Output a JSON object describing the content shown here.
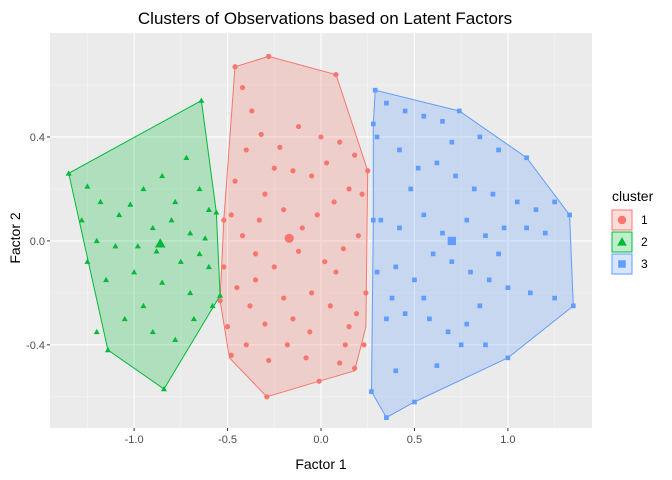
{
  "chart_data": {
    "type": "scatter",
    "title": "Clusters of Observations based on Latent Factors",
    "xlabel": "Factor 1",
    "ylabel": "Factor 2",
    "xlim": [
      -1.45,
      1.45
    ],
    "ylim": [
      -0.72,
      0.8
    ],
    "x_ticks": [
      -1.0,
      -0.5,
      0.0,
      0.5,
      1.0
    ],
    "x_tick_labels": [
      "-1.0",
      "-0.5",
      "0.0",
      "0.5",
      "1.0"
    ],
    "y_ticks": [
      -0.4,
      0.0,
      0.4
    ],
    "y_tick_labels": [
      "-0.4",
      "0.0",
      "0.4"
    ],
    "grid": true,
    "legend": {
      "title": "cluster",
      "position": "right"
    },
    "series": [
      {
        "name": "1",
        "color": "#F8766D",
        "shape": "circle",
        "centroid": [
          -0.17,
          0.01
        ],
        "hull": [
          [
            -0.28,
            0.71
          ],
          [
            -0.46,
            0.67
          ],
          [
            -0.52,
            0.08
          ],
          [
            -0.54,
            -0.23
          ],
          [
            -0.49,
            -0.45
          ],
          [
            -0.29,
            -0.6
          ],
          [
            -0.01,
            -0.54
          ],
          [
            0.18,
            -0.5
          ],
          [
            0.24,
            -0.33
          ],
          [
            0.25,
            0.27
          ],
          [
            0.08,
            0.64
          ]
        ],
        "points": [
          [
            -0.28,
            0.71
          ],
          [
            -0.46,
            0.67
          ],
          [
            -0.42,
            0.59
          ],
          [
            -0.37,
            0.5
          ],
          [
            -0.32,
            0.41
          ],
          [
            -0.25,
            0.28
          ],
          [
            -0.15,
            0.27
          ],
          [
            -0.05,
            0.25
          ],
          [
            0.03,
            0.3
          ],
          [
            0.1,
            0.38
          ],
          [
            -0.4,
            0.35
          ],
          [
            -0.3,
            0.18
          ],
          [
            -0.2,
            0.12
          ],
          [
            -0.1,
            0.05
          ],
          [
            -0.02,
            0.1
          ],
          [
            0.07,
            0.15
          ],
          [
            0.15,
            0.2
          ],
          [
            0.22,
            0.18
          ],
          [
            -0.48,
            0.1
          ],
          [
            -0.42,
            0.02
          ],
          [
            -0.35,
            -0.05
          ],
          [
            -0.25,
            -0.1
          ],
          [
            -0.12,
            -0.04
          ],
          [
            0.02,
            -0.08
          ],
          [
            0.12,
            -0.03
          ],
          [
            0.2,
            0.02
          ],
          [
            -0.52,
            -0.1
          ],
          [
            -0.45,
            -0.18
          ],
          [
            -0.38,
            -0.25
          ],
          [
            -0.3,
            -0.32
          ],
          [
            -0.15,
            -0.3
          ],
          [
            -0.05,
            -0.2
          ],
          [
            0.05,
            -0.25
          ],
          [
            0.15,
            -0.33
          ],
          [
            0.23,
            -0.4
          ],
          [
            -0.5,
            -0.33
          ],
          [
            -0.4,
            -0.4
          ],
          [
            -0.28,
            -0.46
          ],
          [
            -0.18,
            -0.4
          ],
          [
            -0.08,
            -0.45
          ],
          [
            0.1,
            -0.47
          ],
          [
            0.18,
            -0.49
          ],
          [
            -0.48,
            -0.44
          ],
          [
            -0.29,
            -0.6
          ],
          [
            -0.01,
            -0.54
          ],
          [
            -0.33,
            0.08
          ],
          [
            -0.22,
            0.36
          ],
          [
            -0.12,
            0.44
          ],
          [
            0.0,
            0.4
          ],
          [
            0.18,
            0.33
          ],
          [
            -0.46,
            0.23
          ],
          [
            0.24,
            -0.2
          ],
          [
            0.08,
            -0.12
          ],
          [
            -0.35,
            -0.15
          ],
          [
            -0.2,
            -0.22
          ],
          [
            -0.06,
            -0.35
          ],
          [
            0.13,
            -0.4
          ],
          [
            0.19,
            -0.28
          ],
          [
            -0.54,
            -0.23
          ],
          [
            -0.52,
            0.08
          ],
          [
            0.25,
            0.27
          ],
          [
            0.08,
            0.64
          ]
        ]
      },
      {
        "name": "2",
        "color": "#00BA38",
        "shape": "triangle",
        "centroid": [
          -0.86,
          -0.01
        ],
        "hull": [
          [
            -0.64,
            0.54
          ],
          [
            -1.35,
            0.26
          ],
          [
            -1.14,
            -0.42
          ],
          [
            -0.84,
            -0.57
          ],
          [
            -0.54,
            -0.21
          ],
          [
            -0.56,
            0.11
          ]
        ],
        "points": [
          [
            -0.64,
            0.54
          ],
          [
            -1.35,
            0.26
          ],
          [
            -1.25,
            0.21
          ],
          [
            -1.18,
            0.15
          ],
          [
            -1.08,
            0.1
          ],
          [
            -0.95,
            0.2
          ],
          [
            -0.85,
            0.25
          ],
          [
            -0.72,
            0.32
          ],
          [
            -0.65,
            0.2
          ],
          [
            -0.6,
            0.12
          ],
          [
            -0.9,
            0.05
          ],
          [
            -0.8,
            0.08
          ],
          [
            -0.7,
            0.03
          ],
          [
            -0.62,
            0.01
          ],
          [
            -1.2,
            0.0
          ],
          [
            -1.1,
            -0.02
          ],
          [
            -0.98,
            -0.02
          ],
          [
            -0.88,
            -0.04
          ],
          [
            -0.75,
            -0.08
          ],
          [
            -0.6,
            -0.1
          ],
          [
            -1.25,
            -0.08
          ],
          [
            -1.15,
            -0.15
          ],
          [
            -1.0,
            -0.12
          ],
          [
            -0.85,
            -0.16
          ],
          [
            -0.7,
            -0.2
          ],
          [
            -0.58,
            -0.25
          ],
          [
            -1.14,
            -0.42
          ],
          [
            -0.84,
            -0.57
          ],
          [
            -0.54,
            -0.21
          ],
          [
            -1.2,
            -0.35
          ],
          [
            -1.05,
            -0.3
          ],
          [
            -0.9,
            -0.35
          ],
          [
            -0.78,
            -0.38
          ],
          [
            -0.68,
            -0.3
          ],
          [
            -1.28,
            0.08
          ],
          [
            -0.56,
            0.11
          ],
          [
            -0.78,
            0.15
          ],
          [
            -1.02,
            0.14
          ],
          [
            -0.95,
            -0.25
          ],
          [
            -0.65,
            -0.05
          ]
        ]
      },
      {
        "name": "3",
        "color": "#619CFF",
        "shape": "square",
        "centroid": [
          0.7,
          0.0
        ],
        "hull": [
          [
            0.29,
            0.58
          ],
          [
            0.74,
            0.5
          ],
          [
            1.1,
            0.32
          ],
          [
            1.33,
            0.1
          ],
          [
            1.35,
            -0.25
          ],
          [
            1.0,
            -0.45
          ],
          [
            0.5,
            -0.62
          ],
          [
            0.35,
            -0.68
          ],
          [
            0.27,
            -0.58
          ],
          [
            0.28,
            0.08
          ],
          [
            0.28,
            0.45
          ]
        ],
        "points": [
          [
            0.29,
            0.58
          ],
          [
            0.35,
            0.53
          ],
          [
            0.45,
            0.5
          ],
          [
            0.55,
            0.48
          ],
          [
            0.65,
            0.46
          ],
          [
            0.74,
            0.5
          ],
          [
            0.85,
            0.4
          ],
          [
            0.95,
            0.35
          ],
          [
            1.1,
            0.32
          ],
          [
            0.3,
            0.4
          ],
          [
            0.42,
            0.35
          ],
          [
            0.52,
            0.28
          ],
          [
            0.62,
            0.3
          ],
          [
            0.72,
            0.25
          ],
          [
            0.82,
            0.2
          ],
          [
            0.92,
            0.18
          ],
          [
            1.05,
            0.15
          ],
          [
            1.15,
            0.12
          ],
          [
            1.25,
            0.15
          ],
          [
            1.33,
            0.1
          ],
          [
            0.32,
            0.08
          ],
          [
            0.42,
            0.05
          ],
          [
            0.55,
            0.1
          ],
          [
            0.65,
            0.03
          ],
          [
            0.78,
            0.08
          ],
          [
            0.88,
            0.02
          ],
          [
            0.98,
            0.05
          ],
          [
            1.1,
            0.05
          ],
          [
            1.2,
            0.03
          ],
          [
            0.3,
            -0.12
          ],
          [
            0.4,
            -0.1
          ],
          [
            0.5,
            -0.15
          ],
          [
            0.6,
            -0.05
          ],
          [
            0.7,
            -0.08
          ],
          [
            0.8,
            -0.12
          ],
          [
            0.9,
            -0.15
          ],
          [
            1.0,
            -0.18
          ],
          [
            1.12,
            -0.2
          ],
          [
            1.25,
            -0.22
          ],
          [
            1.35,
            -0.25
          ],
          [
            0.35,
            -0.3
          ],
          [
            0.45,
            -0.28
          ],
          [
            0.58,
            -0.3
          ],
          [
            0.68,
            -0.35
          ],
          [
            0.78,
            -0.32
          ],
          [
            0.88,
            -0.4
          ],
          [
            1.0,
            -0.45
          ],
          [
            0.4,
            -0.5
          ],
          [
            0.5,
            -0.62
          ],
          [
            0.35,
            -0.68
          ],
          [
            0.27,
            -0.58
          ],
          [
            0.62,
            -0.48
          ],
          [
            0.75,
            -0.4
          ],
          [
            0.55,
            -0.22
          ],
          [
            0.85,
            -0.25
          ],
          [
            0.48,
            0.2
          ],
          [
            0.7,
            0.38
          ],
          [
            0.38,
            -0.22
          ],
          [
            0.95,
            -0.05
          ],
          [
            0.28,
            0.08
          ],
          [
            0.28,
            0.45
          ]
        ]
      }
    ]
  }
}
